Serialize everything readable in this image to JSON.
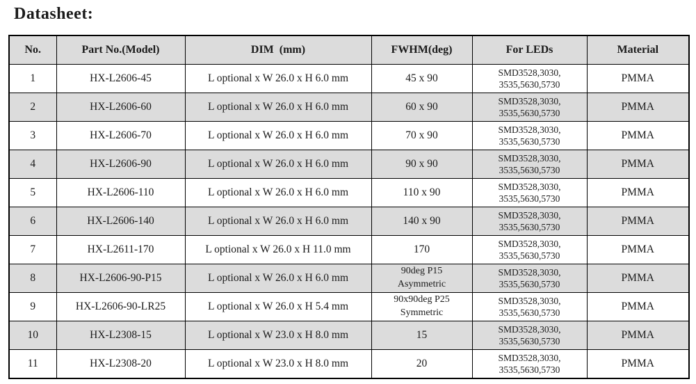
{
  "page": {
    "title": "Datasheet:"
  },
  "colors": {
    "header_bg": "#dcdcdc",
    "shaded_row_bg": "#dcdcdc",
    "border": "#000000",
    "text": "#1a1a1a",
    "background": "#ffffff"
  },
  "table": {
    "columns": [
      "No.",
      "Part No.(Model)",
      "DIM  (mm)",
      "FWHM(deg)",
      "For LEDs",
      "Material"
    ],
    "rows": [
      {
        "no": "1",
        "part_no": "HX-L2606-45",
        "dim": "L optional x W 26.0 x H 6.0 mm",
        "fwhm": [
          "45 x 90"
        ],
        "for_leds": [
          "SMD3528,3030,",
          "3535,5630,5730"
        ],
        "material": "PMMA",
        "shaded": false
      },
      {
        "no": "2",
        "part_no": "HX-L2606-60",
        "dim": "L optional x W 26.0 x H 6.0 mm",
        "fwhm": [
          "60 x 90"
        ],
        "for_leds": [
          "SMD3528,3030,",
          "3535,5630,5730"
        ],
        "material": "PMMA",
        "shaded": true
      },
      {
        "no": "3",
        "part_no": "HX-L2606-70",
        "dim": "L optional x W 26.0 x H 6.0 mm",
        "fwhm": [
          "70 x 90"
        ],
        "for_leds": [
          "SMD3528,3030,",
          "3535,5630,5730"
        ],
        "material": "PMMA",
        "shaded": false
      },
      {
        "no": "4",
        "part_no": "HX-L2606-90",
        "dim": "L optional x W 26.0 x H 6.0 mm",
        "fwhm": [
          "90 x 90"
        ],
        "for_leds": [
          "SMD3528,3030,",
          "3535,5630,5730"
        ],
        "material": "PMMA",
        "shaded": true
      },
      {
        "no": "5",
        "part_no": "HX-L2606-110",
        "dim": "L optional x W 26.0 x H 6.0 mm",
        "fwhm": [
          "110 x 90"
        ],
        "for_leds": [
          "SMD3528,3030,",
          "3535,5630,5730"
        ],
        "material": "PMMA",
        "shaded": false
      },
      {
        "no": "6",
        "part_no": "HX-L2606-140",
        "dim": "L optional x W 26.0 x H 6.0 mm",
        "fwhm": [
          "140 x 90"
        ],
        "for_leds": [
          "SMD3528,3030,",
          "3535,5630,5730"
        ],
        "material": "PMMA",
        "shaded": true
      },
      {
        "no": "7",
        "part_no": "HX-L2611-170",
        "dim": "L optional x W 26.0 x H 11.0 mm",
        "fwhm": [
          "170"
        ],
        "for_leds": [
          "SMD3528,3030,",
          "3535,5630,5730"
        ],
        "material": "PMMA",
        "shaded": false
      },
      {
        "no": "8",
        "part_no": "HX-L2606-90-P15",
        "dim": "L optional x W 26.0 x H 6.0 mm",
        "fwhm": [
          "90deg P15",
          "Asymmetric"
        ],
        "for_leds": [
          "SMD3528,3030,",
          "3535,5630,5730"
        ],
        "material": "PMMA",
        "shaded": true
      },
      {
        "no": "9",
        "part_no": "HX-L2606-90-LR25",
        "dim": "L optional x W 26.0 x H 5.4 mm",
        "fwhm": [
          "90x90deg P25",
          "Symmetric"
        ],
        "for_leds": [
          "SMD3528,3030,",
          "3535,5630,5730"
        ],
        "material": "PMMA",
        "shaded": false
      },
      {
        "no": "10",
        "part_no": "HX-L2308-15",
        "dim": "L optional x W 23.0 x H 8.0 mm",
        "fwhm": [
          "15"
        ],
        "for_leds": [
          "SMD3528,3030,",
          "3535,5630,5730"
        ],
        "material": "PMMA",
        "shaded": true
      },
      {
        "no": "11",
        "part_no": "HX-L2308-20",
        "dim": "L optional x W 23.0 x H 8.0 mm",
        "fwhm": [
          "20"
        ],
        "for_leds": [
          "SMD3528,3030,",
          "3535,5630,5730"
        ],
        "material": "PMMA",
        "shaded": false
      }
    ]
  }
}
